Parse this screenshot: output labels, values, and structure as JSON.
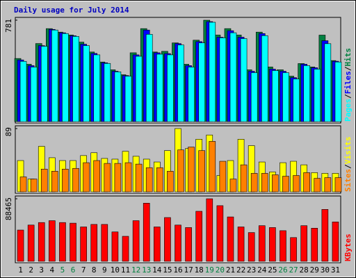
{
  "chart_data": [
    {
      "type": "bar",
      "title": "Daily usage for July 2014",
      "title_color": "#0000c0",
      "ylim": [
        0,
        781
      ],
      "yticks": [
        781
      ],
      "legend_separator": "/",
      "series": [
        {
          "name": "Hits",
          "color": "#008040",
          "values": [
            486,
            442,
            601,
            716,
            689,
            667,
            612,
            536,
            459,
            399,
            361,
            530,
            716,
            536,
            541,
            606,
            442,
            627,
            781,
            667,
            716,
            667,
            399,
            689,
            421,
            399,
            350,
            447,
            421,
            666,
            470
          ]
        },
        {
          "name": "Files",
          "color": "#0000ff",
          "values": [
            475,
            431,
            585,
            710,
            684,
            661,
            596,
            525,
            453,
            388,
            355,
            514,
            705,
            530,
            524,
            601,
            431,
            616,
            770,
            650,
            700,
            650,
            388,
            678,
            404,
            388,
            339,
            442,
            415,
            623,
            465
          ]
        },
        {
          "name": "Pages",
          "color": "#00ffff",
          "values": [
            464,
            420,
            580,
            705,
            678,
            656,
            585,
            514,
            448,
            383,
            350,
            503,
            672,
            519,
            514,
            590,
            420,
            606,
            765,
            645,
            684,
            639,
            377,
            662,
            393,
            377,
            328,
            431,
            404,
            600,
            459
          ]
        }
      ]
    },
    {
      "type": "bar",
      "ylim": [
        0,
        89
      ],
      "yticks": [
        89
      ],
      "legend_separator": "/",
      "series": [
        {
          "name": "Visits",
          "color": "#ffff00",
          "values": [
            44,
            18,
            64,
            48,
            44,
            44,
            51,
            55,
            47,
            46,
            57,
            50,
            46,
            42,
            58,
            89,
            61,
            74,
            80,
            23,
            44,
            74,
            65,
            42,
            28,
            41,
            43,
            38,
            27,
            26,
            26
          ]
        },
        {
          "name": "Sites",
          "color": "#ff8000",
          "values": [
            21,
            18,
            32,
            29,
            32,
            33,
            41,
            44,
            40,
            40,
            41,
            39,
            34,
            34,
            29,
            59,
            63,
            58,
            71,
            43,
            18,
            38,
            26,
            26,
            24,
            22,
            23,
            27,
            19,
            20,
            20
          ]
        }
      ]
    },
    {
      "type": "bar",
      "ylim": [
        0,
        88465
      ],
      "yticks": [
        88465
      ],
      "categories": [
        "1",
        "2",
        "3",
        "4",
        "5",
        "6",
        "7",
        "8",
        "9",
        "10",
        "11",
        "12",
        "13",
        "14",
        "15",
        "16",
        "17",
        "18",
        "19",
        "20",
        "21",
        "22",
        "23",
        "24",
        "25",
        "26",
        "27",
        "28",
        "29",
        "30",
        "31"
      ],
      "category_colors": [
        "#000000",
        "#000000",
        "#000000",
        "#000000",
        "#008040",
        "#008040",
        "#000000",
        "#000000",
        "#000000",
        "#000000",
        "#000000",
        "#008040",
        "#008040",
        "#000000",
        "#000000",
        "#000000",
        "#000000",
        "#000000",
        "#008040",
        "#008040",
        "#000000",
        "#000000",
        "#000000",
        "#000000",
        "#000000",
        "#008040",
        "#008040",
        "#000000",
        "#000000",
        "#000000",
        "#000000"
      ],
      "series": [
        {
          "name": "KBytes",
          "color": "#ff0000",
          "values": [
            44233,
            51310,
            54848,
            57502,
            54848,
            53964,
            48656,
            52194,
            52194,
            41579,
            35386,
            57502,
            82272,
            48656,
            61926,
            51310,
            47771,
            70772,
            88465,
            78734,
            62810,
            48656,
            40694,
            50425,
            47771,
            43348,
            33617,
            50425,
            46886,
            73426,
            55733
          ]
        }
      ]
    }
  ]
}
